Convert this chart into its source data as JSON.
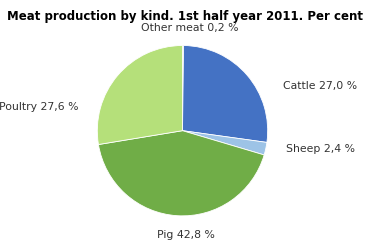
{
  "title": "Meat production by kind. 1st half year 2011. Per cent",
  "slices": [
    {
      "label": "Other meat 0,2 %",
      "value": 0.2,
      "color": "#d4a017"
    },
    {
      "label": "Cattle 27,0 %",
      "value": 27.0,
      "color": "#4472c4"
    },
    {
      "label": "Sheep 2,4 %",
      "value": 2.4,
      "color": "#9dc3e6"
    },
    {
      "label": "Pig 42,8 %",
      "value": 42.8,
      "color": "#70ad47"
    },
    {
      "label": "Poultry 27,6 %",
      "value": 27.6,
      "color": "#b5e07a"
    }
  ],
  "startangle": 90,
  "title_fontsize": 8.5,
  "label_fontsize": 7.8,
  "background_color": "#ffffff",
  "label_positions": [
    [
      0.08,
      1.2,
      "center"
    ],
    [
      1.18,
      0.52,
      "left"
    ],
    [
      1.22,
      -0.22,
      "left"
    ],
    [
      -0.3,
      -1.22,
      "left"
    ],
    [
      -1.22,
      0.28,
      "right"
    ]
  ]
}
